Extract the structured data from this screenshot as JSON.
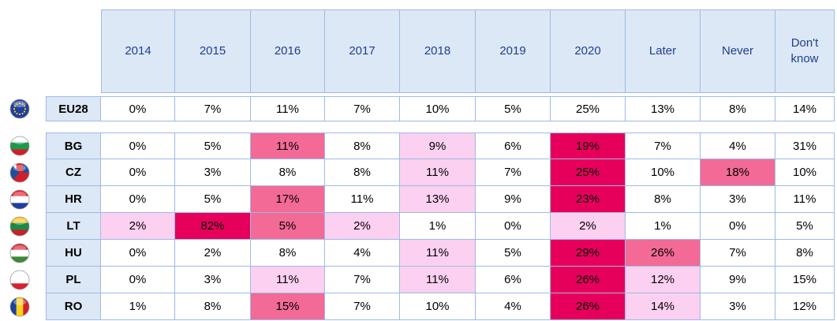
{
  "table": {
    "columns": [
      "2014",
      "2015",
      "2016",
      "2017",
      "2018",
      "2019",
      "2020",
      "Later",
      "Never",
      "Don't know"
    ],
    "rows": [
      {
        "country": "EU28",
        "cells": [
          "0%",
          "7%",
          "11%",
          "7%",
          "10%",
          "5%",
          "25%",
          "13%",
          "8%",
          "14%"
        ],
        "colors": [
          null,
          null,
          null,
          null,
          null,
          null,
          null,
          null,
          null,
          null
        ]
      },
      {
        "country": "BG",
        "cells": [
          "0%",
          "5%",
          "11%",
          "8%",
          "9%",
          "6%",
          "19%",
          "7%",
          "4%",
          "31%"
        ],
        "colors": [
          null,
          null,
          "#f36a97",
          null,
          "#fcd0f0",
          null,
          "#e6005c",
          null,
          null,
          null
        ]
      },
      {
        "country": "CZ",
        "cells": [
          "0%",
          "3%",
          "8%",
          "8%",
          "11%",
          "7%",
          "25%",
          "10%",
          "18%",
          "10%"
        ],
        "colors": [
          null,
          null,
          null,
          null,
          "#fcd0f0",
          null,
          "#e6005c",
          null,
          "#f36a97",
          null
        ]
      },
      {
        "country": "HR",
        "cells": [
          "0%",
          "5%",
          "17%",
          "11%",
          "13%",
          "9%",
          "23%",
          "8%",
          "3%",
          "11%"
        ],
        "colors": [
          null,
          null,
          "#f36a97",
          null,
          "#fcd0f0",
          null,
          "#e6005c",
          null,
          null,
          null
        ]
      },
      {
        "country": "LT",
        "cells": [
          "2%",
          "82%",
          "5%",
          "2%",
          "1%",
          "0%",
          "2%",
          "1%",
          "0%",
          "5%"
        ],
        "colors": [
          "#fcd0f0",
          "#e6005c",
          "#f36a97",
          "#fcd0f0",
          null,
          null,
          "#fcd0f0",
          null,
          null,
          null
        ]
      },
      {
        "country": "HU",
        "cells": [
          "0%",
          "2%",
          "8%",
          "4%",
          "11%",
          "5%",
          "29%",
          "26%",
          "7%",
          "8%"
        ],
        "colors": [
          null,
          null,
          null,
          null,
          "#fcd0f0",
          null,
          "#e6005c",
          "#f36a97",
          null,
          null
        ]
      },
      {
        "country": "PL",
        "cells": [
          "0%",
          "3%",
          "11%",
          "7%",
          "11%",
          "6%",
          "26%",
          "12%",
          "9%",
          "15%"
        ],
        "colors": [
          null,
          null,
          "#fcd0f0",
          null,
          "#fcd0f0",
          null,
          "#e6005c",
          "#fcd0f0",
          null,
          null
        ]
      },
      {
        "country": "RO",
        "cells": [
          "1%",
          "8%",
          "15%",
          "7%",
          "10%",
          "4%",
          "26%",
          "14%",
          "3%",
          "12%"
        ],
        "colors": [
          null,
          null,
          "#f36a97",
          null,
          null,
          null,
          "#e6005c",
          "#fcd0f0",
          null,
          null
        ]
      }
    ]
  }
}
